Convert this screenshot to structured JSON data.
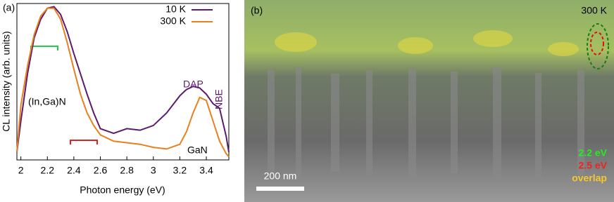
{
  "chart_data": {
    "type": "line",
    "panel_label": "(a)",
    "x_label": "Photon energy (eV)",
    "y_label": "CL intensity (arb. units)",
    "x": [
      1.97,
      2.0,
      2.05,
      2.1,
      2.15,
      2.2,
      2.25,
      2.3,
      2.35,
      2.4,
      2.45,
      2.5,
      2.55,
      2.6,
      2.7,
      2.8,
      2.9,
      3.0,
      3.1,
      3.2,
      3.25,
      3.3,
      3.35,
      3.4,
      3.45,
      3.5,
      3.55,
      3.57
    ],
    "series": [
      {
        "name": "10 K",
        "color": "#5b1a6e",
        "values": [
          0.05,
          0.25,
          0.55,
          0.78,
          0.9,
          0.97,
          0.98,
          0.93,
          0.82,
          0.68,
          0.55,
          0.42,
          0.3,
          0.2,
          0.17,
          0.2,
          0.19,
          0.22,
          0.3,
          0.41,
          0.45,
          0.47,
          0.46,
          0.42,
          0.36,
          0.33,
          0.15,
          0.05
        ]
      },
      {
        "name": "300 K",
        "color": "#e8801e",
        "values": [
          0.05,
          0.35,
          0.6,
          0.8,
          0.92,
          0.97,
          0.97,
          0.9,
          0.75,
          0.58,
          0.42,
          0.3,
          0.22,
          0.16,
          0.12,
          0.11,
          0.1,
          0.08,
          0.07,
          0.1,
          0.18,
          0.3,
          0.4,
          0.38,
          0.25,
          0.12,
          0.04,
          0.02
        ]
      }
    ],
    "xlim": [
      1.97,
      3.57
    ],
    "ylim": [
      0,
      1
    ],
    "xticks": [
      2,
      2.2,
      2.4,
      2.6,
      2.8,
      3,
      3.2,
      3.4
    ],
    "annotations": [
      "(In,Ga)N",
      "DAP",
      "NBE",
      "GaN"
    ],
    "legend": "upper right"
  },
  "image": {
    "panel_label": "(b)",
    "temperature": "300 K",
    "scale_bar": "200 nm",
    "legend": [
      "2.2 eV",
      "2.5 eV",
      "overlap"
    ]
  }
}
